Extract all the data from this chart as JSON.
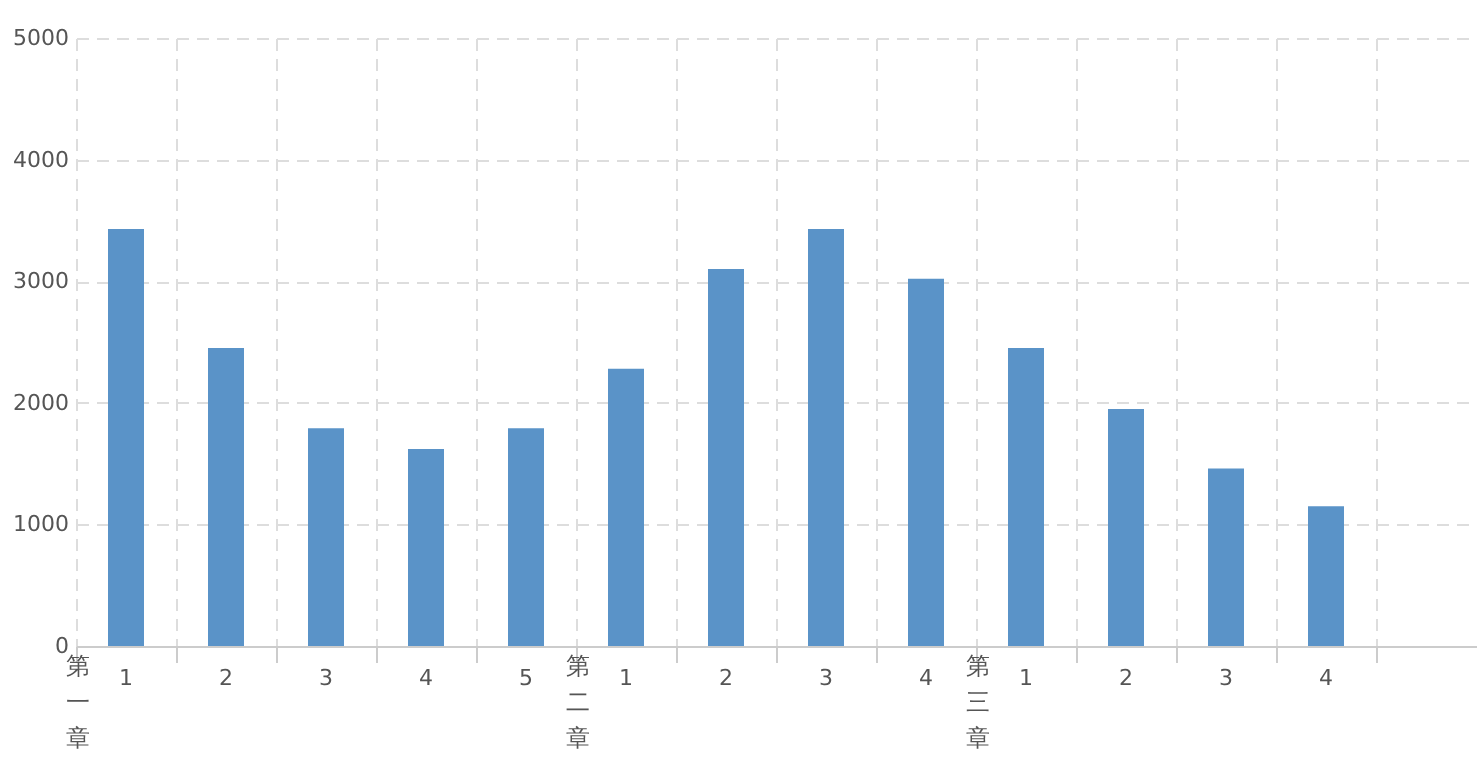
{
  "chart_data": {
    "type": "bar",
    "categories": [
      "1",
      "2",
      "3",
      "4",
      "5",
      "1",
      "2",
      "3",
      "4",
      "1",
      "2",
      "3",
      "4",
      null
    ],
    "values": [
      3430,
      2450,
      1790,
      1620,
      1790,
      2280,
      3100,
      3430,
      3020,
      2450,
      1950,
      1460,
      1150,
      null
    ],
    "color": "#5a93c8",
    "ylim": [
      0,
      5000
    ],
    "yticks": [
      0,
      1000,
      2000,
      3000,
      4000,
      5000
    ],
    "grid": true,
    "annotations": [
      "第一章",
      "第二章",
      "第三章"
    ]
  }
}
